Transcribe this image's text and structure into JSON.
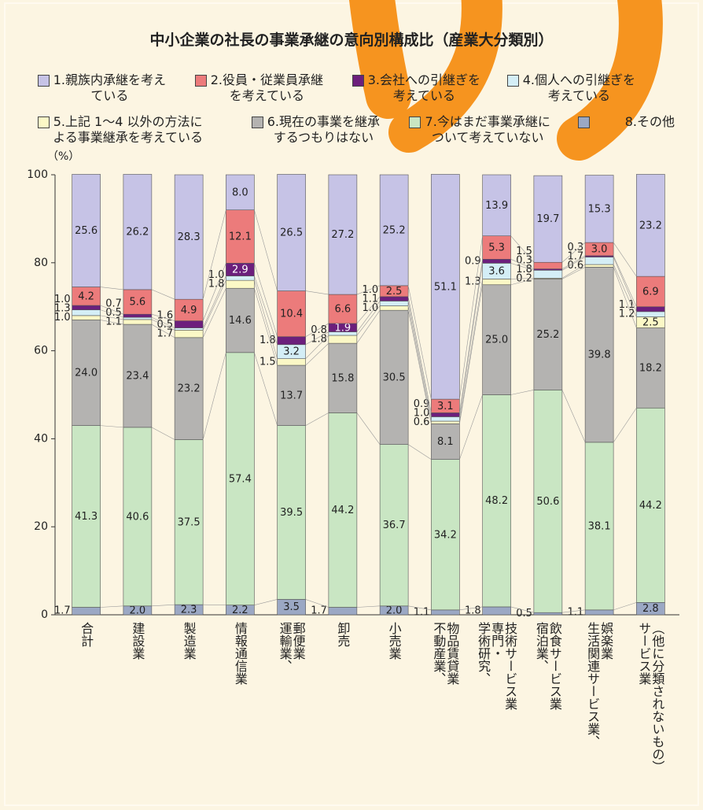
{
  "chart_data": {
    "type": "stacked_bar",
    "title": "中小企業の社長の事業承継の意向別構成比（産業大分類別）",
    "y_label": "（%）",
    "categories": [
      "合計",
      "建設業",
      "製造業",
      "情報通信業",
      "運輸業、郵便業",
      "卸売",
      "小売業",
      "不動産業、物品賃貸業",
      "学術研究、専門・技術サービス業",
      "宿泊業、飲食サービス業",
      "生活関連サービス業、娯楽業",
      "サービス業（他に分類されないもの）"
    ],
    "ylim": [
      0,
      100
    ],
    "yticks": [
      0,
      20,
      40,
      60,
      80,
      100
    ],
    "series": [
      {
        "name": "1.親族内承継を考えている",
        "color": "#c6c3e6",
        "values": [
          25.6,
          26.2,
          28.3,
          8.0,
          26.5,
          27.2,
          25.2,
          51.1,
          13.9,
          19.7,
          15.3,
          23.2
        ],
        "value_labels": [
          "25.6",
          "26.2",
          "28.3",
          "8.0",
          "26.5",
          "27.2",
          "25.2",
          "51.1",
          "13.9",
          "19.7",
          "15.3",
          "23.2"
        ]
      },
      {
        "name": "2.役員・従業員承継を考えている",
        "color": "#ec7b7b",
        "values": [
          4.2,
          5.6,
          4.9,
          12.1,
          10.4,
          6.6,
          2.5,
          3.1,
          5.3,
          1.5,
          3.0,
          6.9
        ],
        "value_labels": [
          "4.2",
          "5.6",
          "4.9",
          "12.1",
          "10.4",
          "6.6",
          "2.5",
          "3.1",
          "5.3",
          "1.5",
          "3.0",
          "6.9"
        ]
      },
      {
        "name": "3.会社への引継ぎを考えている",
        "color": "#6c1f7c",
        "values": [
          1.0,
          0.7,
          1.6,
          2.9,
          1.8,
          1.9,
          1.0,
          0.9,
          0.9,
          0.3,
          0.3,
          1.1
        ],
        "value_labels": [
          "1.0",
          "0.7",
          "1.6",
          "2.9",
          "1.8",
          "1.9",
          "1.0",
          "0.9",
          "0.9",
          "0.3",
          "0.3",
          "1.1"
        ]
      },
      {
        "name": "4.個人への引継ぎを考えている",
        "color": "#d4eef6",
        "values": [
          1.3,
          0.5,
          0.5,
          1.0,
          3.2,
          0.8,
          1.1,
          1.0,
          3.6,
          1.8,
          1.7,
          1.2
        ],
        "value_labels": [
          "1.3",
          "0.5",
          "0.5",
          "1.0",
          "3.2",
          "0.8",
          "1.1",
          "1.0",
          "3.6",
          "1.8",
          "1.7",
          "1.2"
        ]
      },
      {
        "name": "5.上記 1～4 以外の方法による事業継承を考えている",
        "color": "#fbf8c6",
        "values": [
          1.0,
          1.1,
          1.7,
          1.8,
          1.5,
          1.8,
          1.0,
          0.6,
          1.3,
          0.2,
          0.6,
          2.5
        ],
        "value_labels": [
          "1.0",
          "1.1",
          "1.7",
          "1.8",
          "1.5",
          "1.8",
          "1.0",
          "0.6",
          "1.3",
          "0.2",
          "0.6",
          "2.5"
        ]
      },
      {
        "name": "6.現在の事業を継承するつもりはない",
        "color": "#b4b3b1",
        "values": [
          24.0,
          23.4,
          23.2,
          14.6,
          13.7,
          15.8,
          30.5,
          8.1,
          25.0,
          25.2,
          39.8,
          18.2
        ],
        "value_labels": [
          "24.0",
          "23.4",
          "23.2",
          "14.6",
          "13.7",
          "15.8",
          "30.5",
          "8.1",
          "25.0",
          "25.2",
          "39.8",
          "18.2"
        ]
      },
      {
        "name": "7.今はまだ事業承継について考えていない",
        "color": "#c9e6c3",
        "values": [
          41.3,
          40.6,
          37.5,
          57.4,
          39.5,
          44.2,
          36.7,
          34.2,
          48.2,
          50.6,
          38.1,
          44.2
        ],
        "value_labels": [
          "41.3",
          "40.6",
          "37.5",
          "57.4",
          "39.5",
          "44.2",
          "36.7",
          "34.2",
          "48.2",
          "50.6",
          "38.1",
          "44.2"
        ]
      },
      {
        "name": "8.その他",
        "color": "#9ba8c4",
        "values": [
          1.7,
          2.0,
          2.3,
          2.2,
          3.5,
          1.7,
          2.0,
          1.1,
          1.8,
          0.5,
          1.1,
          2.8
        ],
        "value_labels": [
          "1.7",
          "2.0",
          "2.3",
          "2.2",
          "3.5",
          "1.7",
          "2.0",
          "1.1",
          "1.8",
          "0.5",
          "1.1",
          "2.8"
        ]
      }
    ]
  }
}
